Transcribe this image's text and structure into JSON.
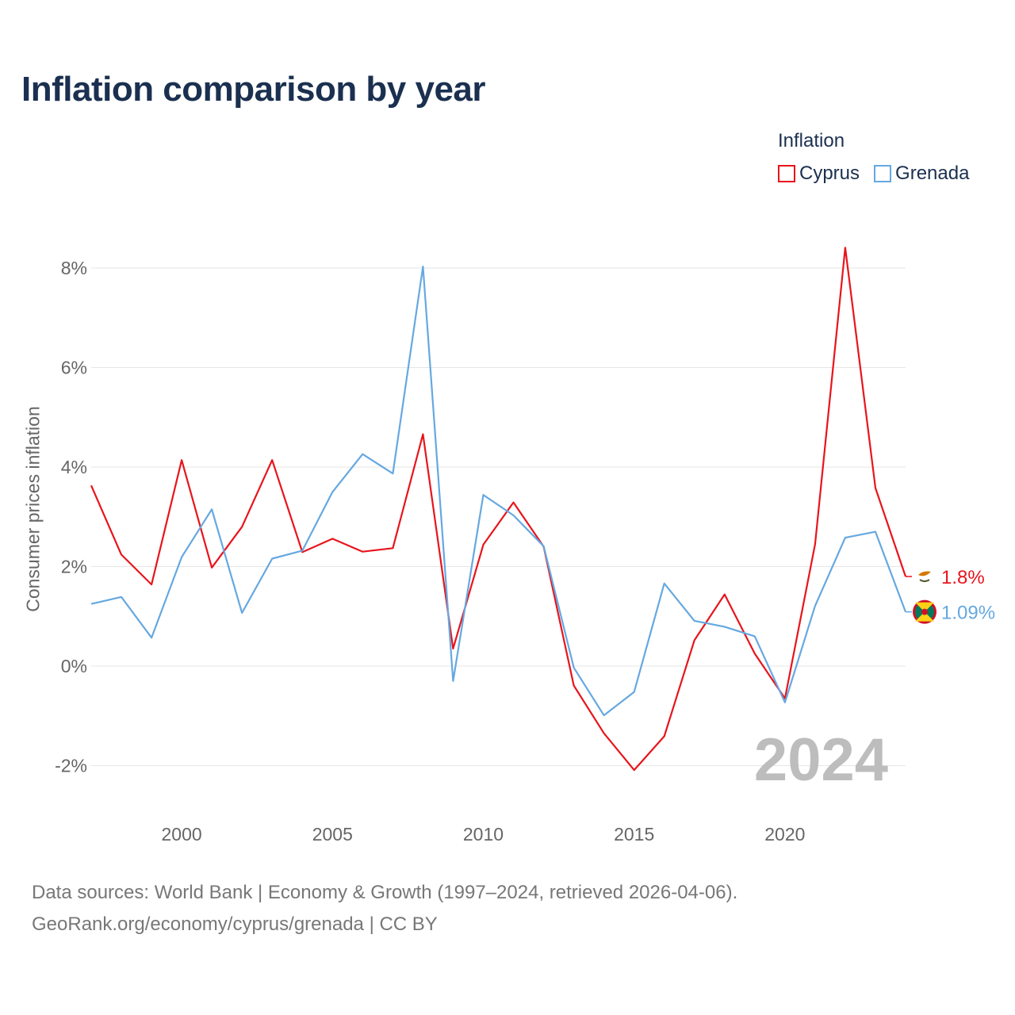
{
  "title": "Inflation comparison by year",
  "legend": {
    "title": "Inflation",
    "items": [
      {
        "label": "Cyprus",
        "color": "#e8141c"
      },
      {
        "label": "Grenada",
        "color": "#66a8e0"
      }
    ]
  },
  "footer": {
    "line1": "Data sources: World Bank | Economy & Growth (1997–2024, retrieved 2026-04-06).",
    "line2": "GeoRank.org/economy/cyprus/grenada | CC BY"
  },
  "chart_data": {
    "type": "line",
    "title": "Inflation comparison by year",
    "xlabel": "",
    "ylabel": "Consumer prices inflation",
    "x": [
      1997,
      1998,
      1999,
      2000,
      2001,
      2002,
      2003,
      2004,
      2005,
      2006,
      2007,
      2008,
      2009,
      2010,
      2011,
      2012,
      2013,
      2014,
      2015,
      2016,
      2017,
      2018,
      2019,
      2020,
      2021,
      2022,
      2023,
      2024
    ],
    "xlim": [
      1997,
      2024
    ],
    "ylim": [
      -3.0,
      8.5
    ],
    "x_ticks": [
      2000,
      2005,
      2010,
      2015,
      2020
    ],
    "y_ticks": [
      -2,
      0,
      2,
      4,
      6,
      8
    ],
    "y_tick_labels": [
      "-2%",
      "0%",
      "2%",
      "4%",
      "6%",
      "8%"
    ],
    "x_tick_labels": [
      "2000",
      "2005",
      "2010",
      "2015",
      "2020"
    ],
    "highlight_year": "2024",
    "series": [
      {
        "name": "Cyprus",
        "color": "#e8141c",
        "end_label": "1.8%",
        "values": [
          3.63,
          2.24,
          1.64,
          4.14,
          1.98,
          2.8,
          4.14,
          2.29,
          2.56,
          2.3,
          2.37,
          4.66,
          0.35,
          2.44,
          3.29,
          2.4,
          -0.39,
          -1.35,
          -2.09,
          -1.41,
          0.52,
          1.44,
          0.25,
          -0.65,
          2.45,
          8.41,
          3.58,
          1.8
        ]
      },
      {
        "name": "Grenada",
        "color": "#66a8e0",
        "end_label": "1.09%",
        "values": [
          1.25,
          1.39,
          0.57,
          2.19,
          3.15,
          1.07,
          2.16,
          2.32,
          3.5,
          4.26,
          3.87,
          8.03,
          -0.3,
          3.44,
          3.03,
          2.41,
          -0.03,
          -0.99,
          -0.52,
          1.66,
          0.91,
          0.79,
          0.6,
          -0.73,
          1.21,
          2.58,
          2.7,
          1.09
        ]
      }
    ]
  }
}
